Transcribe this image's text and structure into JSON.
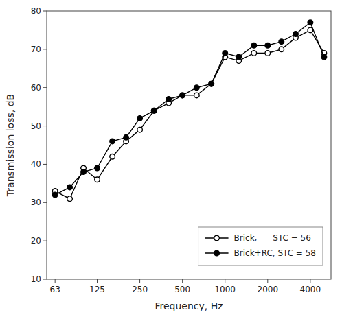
{
  "chart_data": {
    "type": "line",
    "xlabel": "Frequency, Hz",
    "ylabel": "Transmission loss, dB",
    "x": [
      63,
      80,
      100,
      125,
      160,
      200,
      250,
      315,
      400,
      500,
      630,
      800,
      1000,
      1250,
      1600,
      2000,
      2500,
      3150,
      4000,
      5000
    ],
    "series": [
      {
        "name": "Brick,      STC = 56",
        "color": "#000000",
        "marker": "open-circle",
        "line_style": "solid",
        "values": [
          33,
          31,
          39,
          36,
          42,
          46,
          49,
          54,
          56,
          58,
          58,
          61,
          68,
          67,
          69,
          69,
          70,
          73,
          75,
          69
        ]
      },
      {
        "name": "Brick+RC, STC = 58",
        "color": "#000000",
        "marker": "circle",
        "line_style": "solid",
        "values": [
          32,
          34,
          38,
          39,
          46,
          47,
          52,
          54,
          57,
          58,
          60,
          61,
          69,
          68,
          71,
          71,
          72,
          74,
          77,
          68
        ]
      }
    ],
    "log": "x",
    "xlim": [
      55,
      5600
    ],
    "xticks": [
      63,
      125,
      250,
      500,
      1000,
      2000,
      4000
    ],
    "ylim": [
      10,
      80
    ],
    "yticks": [
      10,
      20,
      30,
      40,
      50,
      60,
      70,
      80
    ],
    "grid": false,
    "legend": "lower right"
  }
}
